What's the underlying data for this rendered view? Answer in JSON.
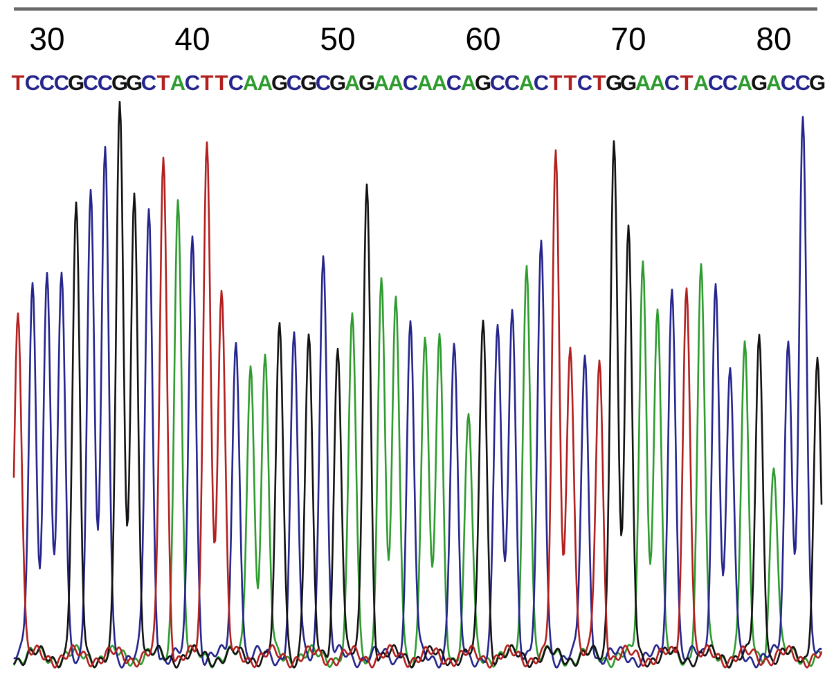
{
  "chart_data": {
    "type": "line",
    "title": "",
    "xlabel": "",
    "ylabel": "",
    "grid": false,
    "legend": "none",
    "position_ticks": [
      "30",
      "40",
      "50",
      "60",
      "70",
      "80"
    ],
    "sequence": "TCCCGCCGGCTACTTCAAGCGCGAGAACAACAGCCACTTCTGGAACTACCAGACCG",
    "base_colors": {
      "A": "#2e9b2e",
      "C": "#24248c",
      "G": "#111111",
      "T": "#b21f1f"
    },
    "series": [
      {
        "base": "A",
        "color": "#2e9b2e"
      },
      {
        "base": "C",
        "color": "#24248c"
      },
      {
        "base": "G",
        "color": "#111111"
      },
      {
        "base": "T",
        "color": "#b21f1f"
      }
    ],
    "peak_heights": [
      0.62,
      0.65,
      0.68,
      0.67,
      0.78,
      0.82,
      0.88,
      0.97,
      0.82,
      0.78,
      0.88,
      0.82,
      0.75,
      0.92,
      0.65,
      0.56,
      0.52,
      0.52,
      0.58,
      0.56,
      0.56,
      0.72,
      0.55,
      0.6,
      0.84,
      0.66,
      0.62,
      0.58,
      0.56,
      0.56,
      0.54,
      0.42,
      0.6,
      0.58,
      0.62,
      0.7,
      0.72,
      0.88,
      0.56,
      0.52,
      0.52,
      0.92,
      0.74,
      0.7,
      0.62,
      0.66,
      0.66,
      0.68,
      0.66,
      0.5,
      0.54,
      0.56,
      0.34,
      0.56,
      0.96,
      0.52
    ]
  }
}
